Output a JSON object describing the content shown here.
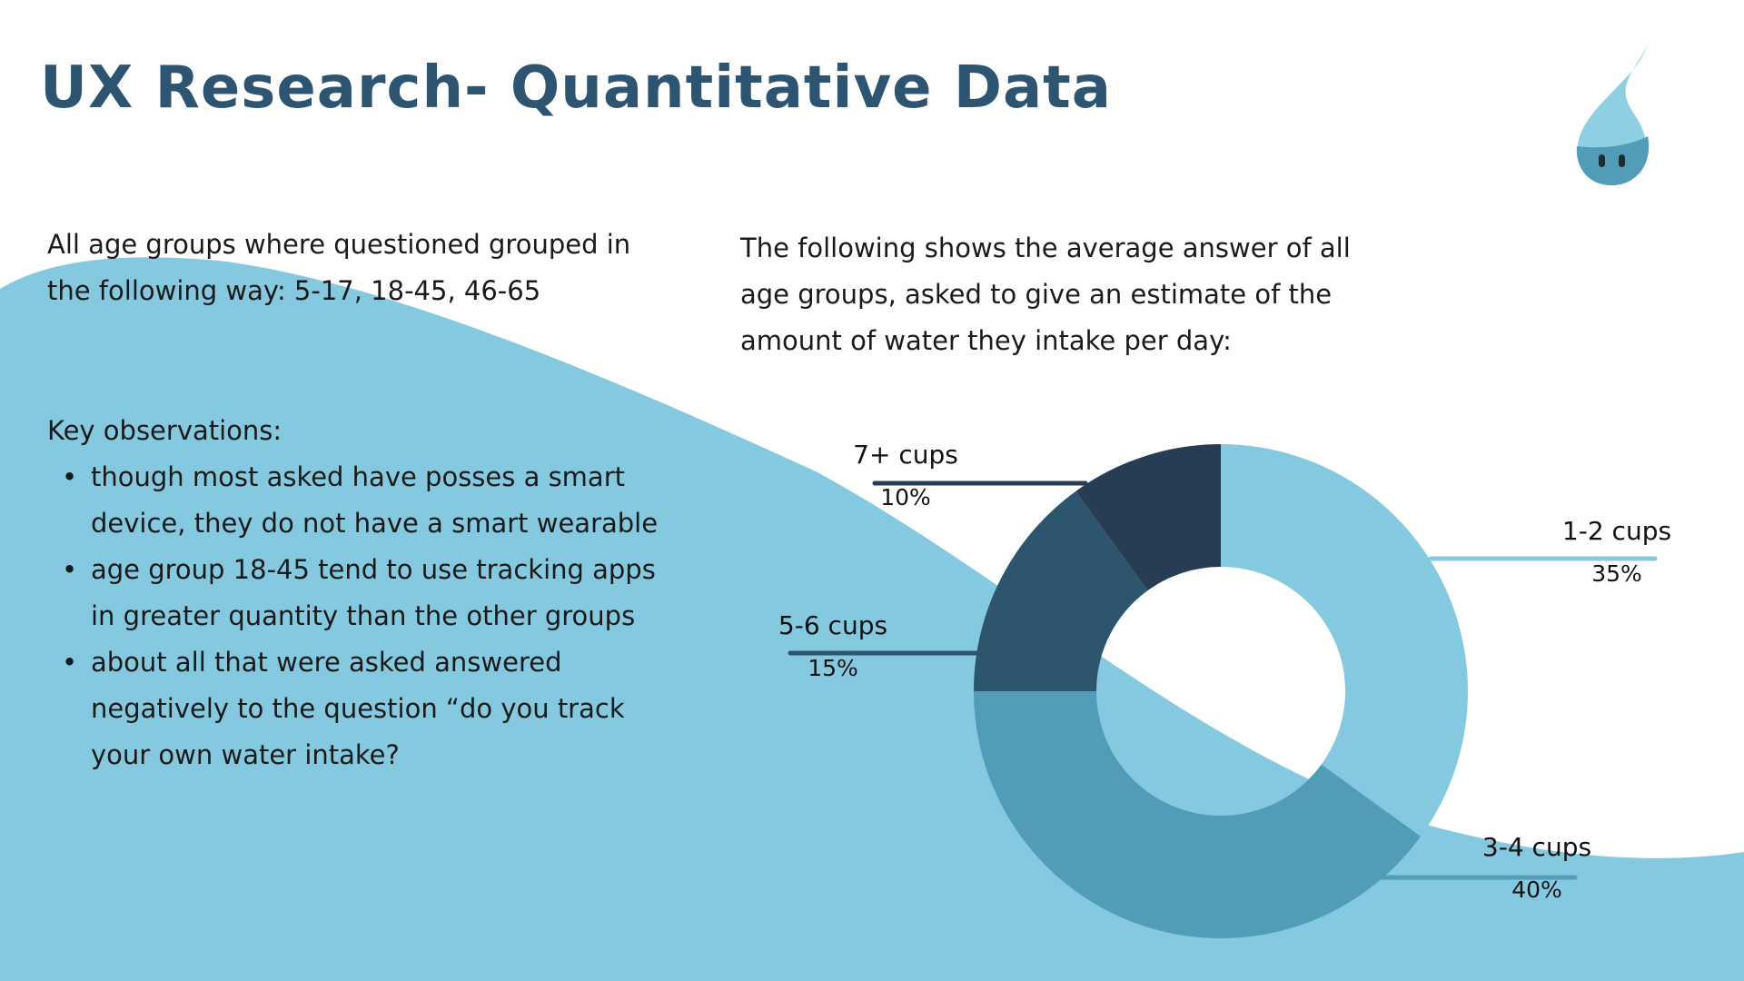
{
  "title": "UX Research- Quantitative Data",
  "intro_text": "All age groups where questioned grouped in the  following way: 5-17, 18-45, 46-65",
  "average_text": "The following shows the average answer of all age groups, asked to give an estimate of the amount of water they intake per day:",
  "key_observations": {
    "heading": "Key observations:",
    "items": [
      "though most asked have posses a smart device, they do not have a smart wearable",
      "age group 18-45 tend to use tracking apps in greater quantity than the other groups",
      "about all that were asked answered negatively to the question “do you track your own water intake?"
    ]
  },
  "icons": {
    "logo": "water-drop-mascot-icon",
    "bullet": "bullet-dot"
  },
  "colors": {
    "title": "#2d5572",
    "wave": "#84c9df",
    "seg_1_2": "#84c9df",
    "seg_3_4": "#519db8",
    "seg_5_6": "#2e556e",
    "seg_7": "#273d53"
  },
  "chart_data": {
    "type": "donut",
    "categories": [
      "1-2 cups",
      "3-4 cups",
      "5-6 cups",
      "7+ cups"
    ],
    "values": [
      35,
      40,
      15,
      10
    ],
    "labels": [
      "35%",
      "40%",
      "15%",
      "10%"
    ],
    "colors": [
      "#84c9df",
      "#519db8",
      "#2e556e",
      "#273d53"
    ],
    "unit": "%",
    "start": "12 o'clock",
    "direction": "clockwise"
  }
}
